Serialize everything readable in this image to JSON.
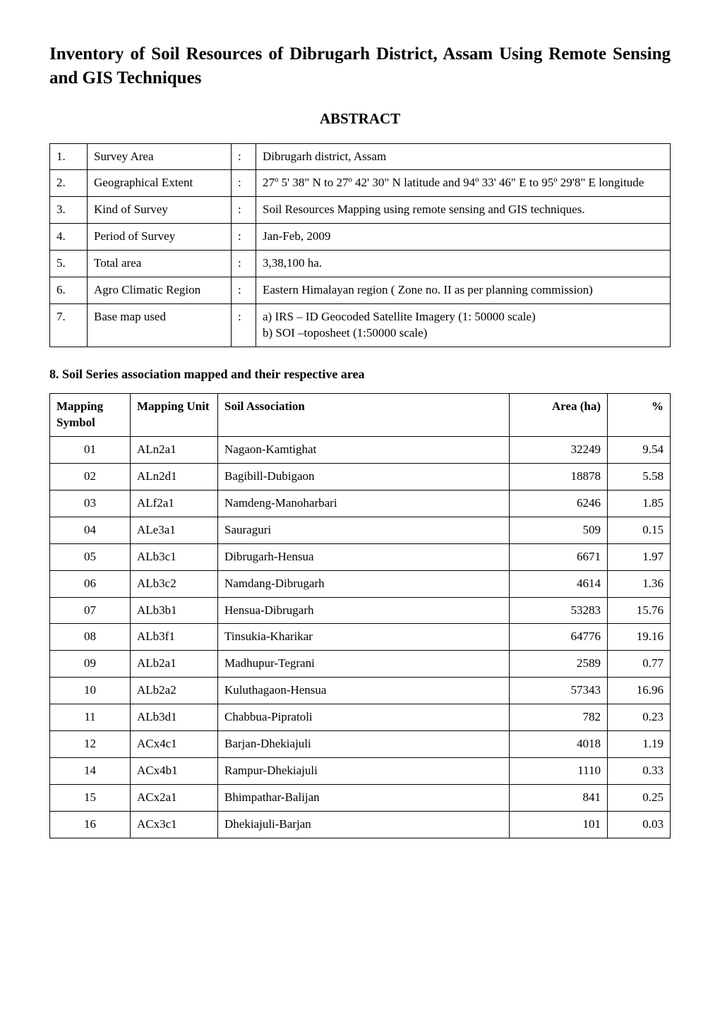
{
  "title": "Inventory of Soil Resources of Dibrugarh District, Assam Using Remote Sensing and GIS Techniques",
  "abstract_heading": "ABSTRACT",
  "abstract_rows": [
    {
      "num": "1.",
      "label": "Survey Area",
      "value": "Dibrugarh district, Assam"
    },
    {
      "num": "2.",
      "label": "Geographical Extent",
      "value": "27º 5' 38\" N to 27º 42' 30\" N latitude and 94º 33' 46\" E to 95º 29'8\" E longitude"
    },
    {
      "num": "3.",
      "label": "Kind of Survey",
      "value": "Soil Resources Mapping using remote sensing and GIS techniques."
    },
    {
      "num": "4.",
      "label": "Period of Survey",
      "value": "Jan-Feb, 2009"
    },
    {
      "num": "5.",
      "label": "Total area",
      "value": "3,38,100 ha."
    },
    {
      "num": "6.",
      "label": "Agro Climatic Region",
      "value": "Eastern Himalayan region ( Zone no. II as per planning commission)"
    },
    {
      "num": "7.",
      "label": "Base map used",
      "value": "a) IRS – ID Geocoded Satellite Imagery (1: 50000 scale)\nb) SOI –toposheet (1:50000 scale)"
    }
  ],
  "colon": ":",
  "section8_heading": "8.  Soil Series association mapped and their respective area",
  "series_table": {
    "columns": [
      "Mapping Symbol",
      "Mapping Unit",
      "Soil Association",
      "Area (ha)",
      "%"
    ],
    "rows": [
      [
        "01",
        "ALn2a1",
        "Nagaon-Kamtighat",
        "32249",
        "9.54"
      ],
      [
        "02",
        "ALn2d1",
        "Bagibill-Dubigaon",
        "18878",
        "5.58"
      ],
      [
        "03",
        "ALf2a1",
        "Namdeng-Manoharbari",
        "6246",
        "1.85"
      ],
      [
        "04",
        "ALe3a1",
        "Sauraguri",
        "509",
        "0.15"
      ],
      [
        "05",
        "ALb3c1",
        "Dibrugarh-Hensua",
        "6671",
        "1.97"
      ],
      [
        "06",
        "ALb3c2",
        "Namdang-Dibrugarh",
        "4614",
        "1.36"
      ],
      [
        "07",
        "ALb3b1",
        "Hensua-Dibrugarh",
        "53283",
        "15.76"
      ],
      [
        "08",
        "ALb3f1",
        "Tinsukia-Kharikar",
        "64776",
        "19.16"
      ],
      [
        "09",
        "ALb2a1",
        "Madhupur-Tegrani",
        "2589",
        "0.77"
      ],
      [
        "10",
        "ALb2a2",
        "Kuluthagaon-Hensua",
        "57343",
        "16.96"
      ],
      [
        "11",
        "ALb3d1",
        "Chabbua-Pipratoli",
        "782",
        "0.23"
      ],
      [
        "12",
        "ACx4c1",
        "Barjan-Dhekiajuli",
        "4018",
        "1.19"
      ],
      [
        "14",
        "ACx4b1",
        "Rampur-Dhekiajuli",
        "1110",
        "0.33"
      ],
      [
        "15",
        "ACx2a1",
        "Bhimpathar-Balijan",
        "841",
        "0.25"
      ],
      [
        "16",
        "ACx3c1",
        "Dhekiajuli-Barjan",
        "101",
        "0.03"
      ]
    ]
  }
}
